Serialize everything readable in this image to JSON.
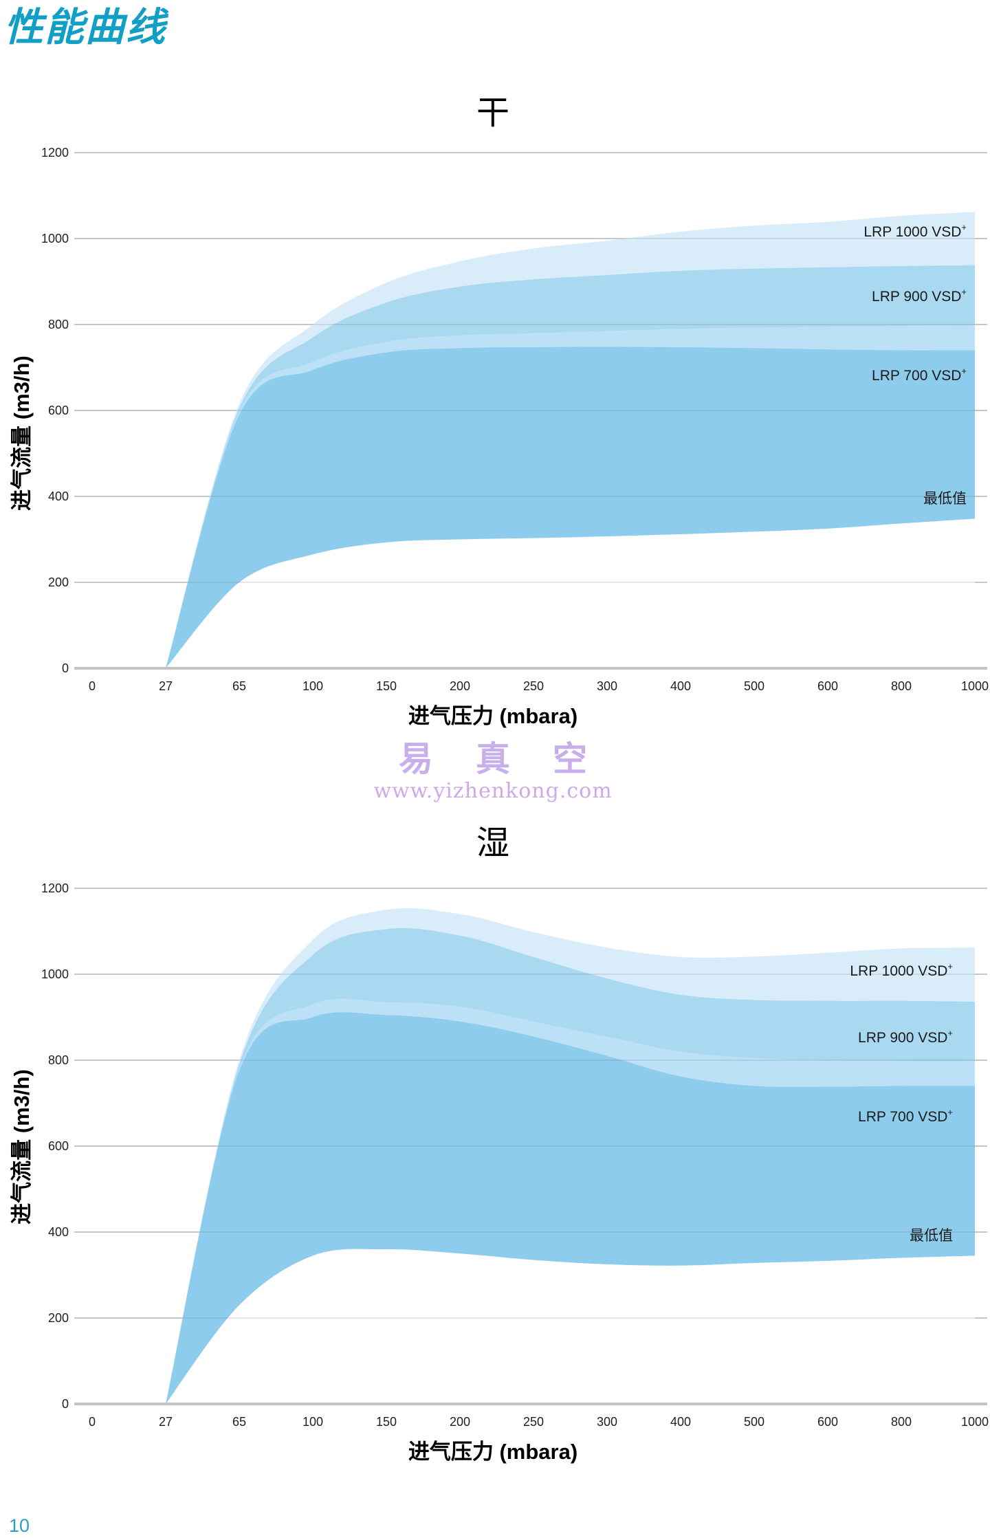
{
  "page": {
    "title": "性能曲线",
    "page_number": "10"
  },
  "watermark": {
    "text": "易真空",
    "url": "www.yizhenkong.com",
    "color": "#C9AEEC"
  },
  "colors": {
    "title_accent": "#129FC6",
    "page_number": "#2D9EC1",
    "band_lightest": "#D8ECF9",
    "band_medium": "#A9D8F1",
    "band_light_strip": "#BCE0F5",
    "band_dark": "#8DCCEC",
    "gridline": "#CBCBCB",
    "baseline": "#C3C3C3",
    "axis_text": "#1F1F1F"
  },
  "chart_data": [
    {
      "type": "area",
      "title": "干",
      "xlabel": "进气压力 (mbara)",
      "ylabel": "进气流量 (m3/h)",
      "x_axis": "category axis, evenly spaced ticks",
      "x_categories": [
        0,
        27,
        65,
        100,
        150,
        200,
        250,
        300,
        400,
        500,
        600,
        800,
        1000
      ],
      "y_ticks": [
        0,
        200,
        400,
        600,
        800,
        1000,
        1200
      ],
      "ylim": [
        0,
        1200
      ],
      "grid": "horizontal",
      "legend_position": "labels inside bands at right",
      "series": [
        {
          "name": "LRP 1000 VSD+",
          "band_color": "#D8ECF9",
          "values": [
            null,
            0,
            615,
            800,
            897,
            947,
            977,
            995,
            1016,
            1030,
            1039,
            1053,
            1062
          ]
        },
        {
          "name": "LRP 900 VSD+",
          "band_color": "#A9D8F1",
          "values": [
            null,
            0,
            605,
            770,
            851,
            888,
            905,
            915,
            925,
            930,
            933,
            936,
            938
          ]
        },
        {
          "name": "LRP 700 VSD+ upper bound",
          "band_color": "#BCE0F5",
          "values": [
            null,
            0,
            598,
            713,
            760,
            775,
            780,
            785,
            790,
            793,
            795,
            797,
            798
          ]
        },
        {
          "name": "LRP 700 VSD+",
          "band_color": "#8DCCEC",
          "values": [
            null,
            0,
            590,
            694,
            735,
            745,
            747,
            748,
            747,
            745,
            742,
            740,
            740
          ]
        },
        {
          "name": "最低值 (lower bound, area below is white)",
          "band_color": "#FFFFFF",
          "values": [
            null,
            0,
            200,
            265,
            293,
            300,
            303,
            307,
            312,
            318,
            325,
            337,
            348
          ]
        }
      ],
      "labels": [
        {
          "id": "lrp-1000",
          "text": "LRP 1000 VSD",
          "sup": "+",
          "y_value": 1015
        },
        {
          "id": "lrp-900",
          "text": "LRP 900 VSD",
          "sup": "+",
          "y_value": 864
        },
        {
          "id": "lrp-700",
          "text": "LRP 700 VSD",
          "sup": "+",
          "y_value": 680
        },
        {
          "id": "min",
          "text": "最低值",
          "sup": "",
          "y_value": 398
        }
      ]
    },
    {
      "type": "area",
      "title": "湿",
      "xlabel": "进气压力 (mbara)",
      "ylabel": "进气流量 (m3/h)",
      "x_axis": "category axis, evenly spaced ticks",
      "x_categories": [
        0,
        27,
        65,
        100,
        150,
        200,
        250,
        300,
        400,
        500,
        600,
        800,
        1000
      ],
      "y_ticks": [
        0,
        200,
        400,
        600,
        800,
        1000,
        1200
      ],
      "ylim": [
        0,
        1200
      ],
      "grid": "horizontal",
      "legend_position": "labels inside bands at right",
      "series": [
        {
          "name": "LRP 1000 VSD+",
          "band_color": "#D8ECF9",
          "values": [
            null,
            0,
            800,
            1080,
            1150,
            1140,
            1098,
            1062,
            1040,
            1041,
            1050,
            1060,
            1062
          ]
        },
        {
          "name": "LRP 900 VSD+",
          "band_color": "#A9D8F1",
          "values": [
            null,
            0,
            790,
            1045,
            1105,
            1090,
            1040,
            990,
            952,
            940,
            938,
            938,
            936
          ]
        },
        {
          "name": "LRP 700 VSD+ upper bound",
          "band_color": "#BCE0F5",
          "values": [
            null,
            0,
            780,
            930,
            935,
            925,
            890,
            855,
            820,
            805,
            800,
            798,
            798
          ]
        },
        {
          "name": "LRP 700 VSD+",
          "band_color": "#8DCCEC",
          "values": [
            null,
            0,
            775,
            900,
            905,
            890,
            855,
            810,
            762,
            740,
            738,
            740,
            740
          ]
        },
        {
          "name": "最低值 (lower bound, area below is white)",
          "band_color": "#FFFFFF",
          "values": [
            null,
            0,
            230,
            345,
            360,
            350,
            335,
            325,
            322,
            328,
            333,
            340,
            345
          ]
        }
      ],
      "labels": [
        {
          "id": "lrp-1000",
          "text": "LRP 1000 VSD",
          "sup": "+",
          "y_value": 1006
        },
        {
          "id": "lrp-900",
          "text": "LRP 900 VSD",
          "sup": "+",
          "y_value": 851
        },
        {
          "id": "lrp-700",
          "text": "LRP 700 VSD",
          "sup": "+",
          "y_value": 667
        },
        {
          "id": "min",
          "text": "最低值",
          "sup": "",
          "y_value": 395
        }
      ]
    }
  ]
}
